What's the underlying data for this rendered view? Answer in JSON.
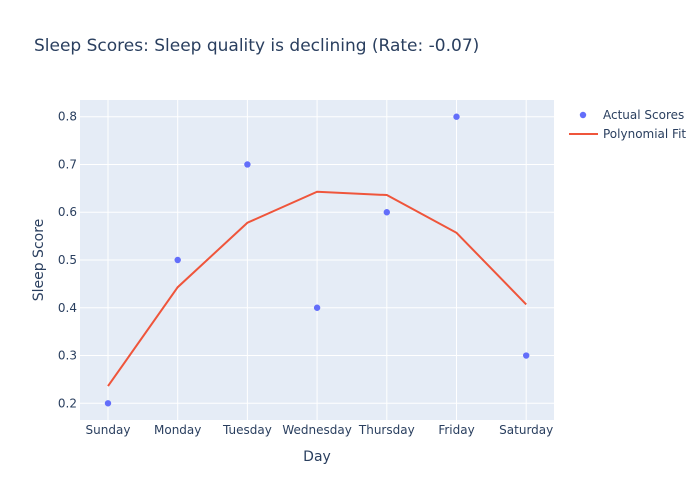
{
  "chart_data": {
    "type": "scatter",
    "title": "Sleep Scores: Sleep quality is declining (Rate: -0.07)",
    "xlabel": "Day",
    "ylabel": "Sleep Score",
    "categories": [
      "Sunday",
      "Monday",
      "Tuesday",
      "Wednesday",
      "Thursday",
      "Friday",
      "Saturday"
    ],
    "ylim": [
      0.165,
      0.835
    ],
    "yticks": [
      "0.2",
      "0.3",
      "0.4",
      "0.5",
      "0.6",
      "0.7",
      "0.8"
    ],
    "grid": true,
    "legend_position": "top-right",
    "series": [
      {
        "name": "Actual Scores",
        "type": "scatter",
        "color": "#636efa",
        "values": [
          0.2,
          0.5,
          0.7,
          0.4,
          0.6,
          0.8,
          0.3
        ]
      },
      {
        "name": "Polynomial Fit",
        "type": "line",
        "color": "#ef553b",
        "values": [
          0.236,
          0.443,
          0.578,
          0.643,
          0.636,
          0.557,
          0.407
        ]
      }
    ]
  },
  "colors": {
    "plot_background": "#e5ecf6",
    "gridline": "#ffffff",
    "text": "#2a3f5f"
  }
}
